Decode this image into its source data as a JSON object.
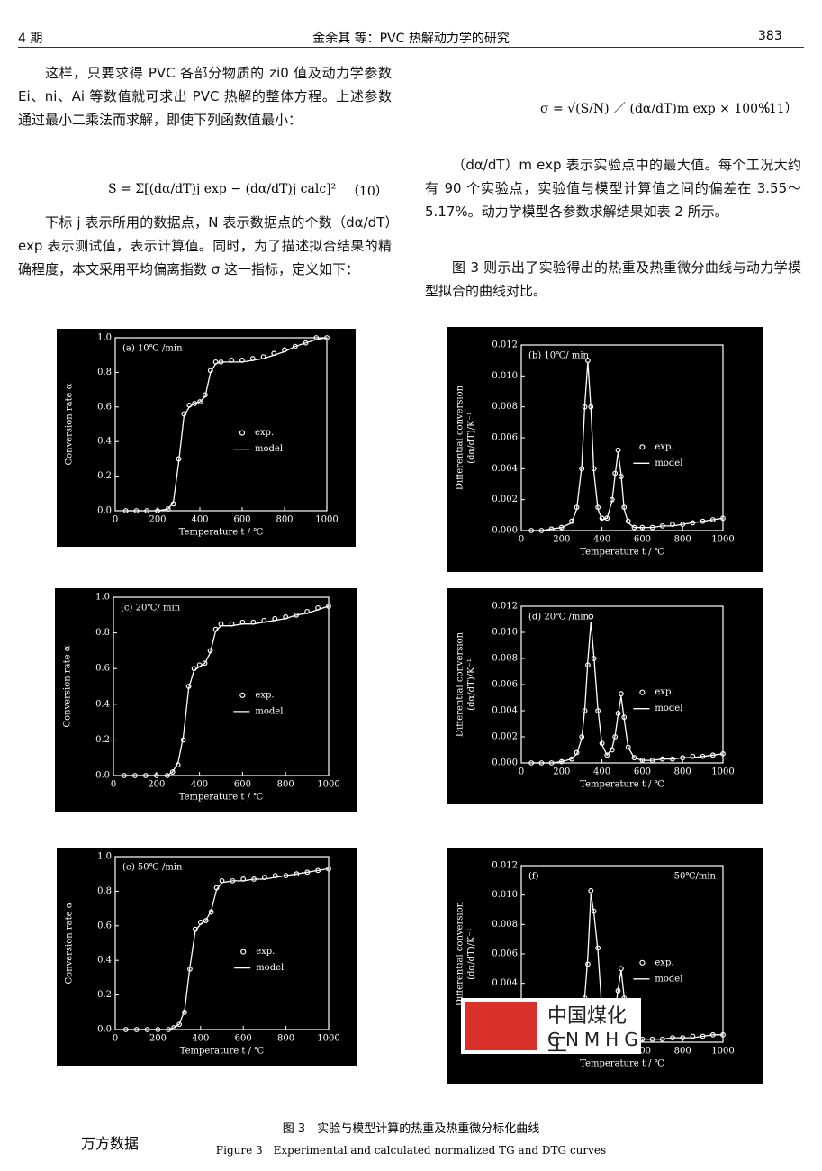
{
  "header": {
    "issue": "4 期",
    "running_title": "金余其 等：PVC 热解动力学的研究",
    "page": "383"
  },
  "text": {
    "left": [
      "这样，只要求得 PVC 各部分物质的 zi0 值及动力学参数 Ei、ni、Ai 等数值就可求出 PVC 热解的整体方程。上述参数通过最小二乘法而求解，即使下列函数值最小：",
      "下标 j 表示所用的数据点，N 表示数据点的个数（dα/dT）exp 表示测试值，表示计算值。同时，为了描述拟合结果的精确程度，本文采用平均偏离指数 σ 这一指标，定义如下："
    ],
    "equation_10": "S = Σ[(dα/dT)j exp − (dα/dT)j calc]²",
    "equation_10_number": "（10）",
    "equation_11": "σ = √(S/N) ／ (dα/dT)m exp × 100%",
    "equation_11_number": "（11）",
    "right": [
      "（dα/dT）m exp 表示实验点中的最大值。每个工况大约有 90 个实验点，实验值与模型计算值之间的偏差在 3.55～5.17%。动力学模型各参数求解结果如表 2 所示。",
      "图 3 则示出了实验得出的热重及热重微分曲线与动力学模型拟合的曲线对比。"
    ]
  },
  "chart_data": [
    {
      "type": "line",
      "label": "(a)  10℃ /min",
      "xlabel": "Temperature   t / ℃",
      "ylabel": [
        "Conversion rate   α"
      ],
      "legend": "center-right",
      "xlim": [
        0,
        1000
      ],
      "xticks": [
        0,
        200,
        400,
        600,
        800,
        1000
      ],
      "ylim": [
        0,
        1
      ],
      "yticks": [
        {
          "value": 0,
          "label": "0.0"
        },
        0.2,
        0.4,
        0.6,
        0.8,
        {
          "value": 1,
          "label": "1.0"
        }
      ],
      "x": [
        50,
        100,
        150,
        200,
        250,
        275,
        300,
        325,
        350,
        375,
        400,
        425,
        450,
        475,
        500,
        550,
        600,
        650,
        700,
        750,
        800,
        850,
        900,
        950,
        1000
      ],
      "series": [
        {
          "name": "exp.",
          "color": "#ffffff",
          "marker": "circle",
          "values": [
            0,
            0,
            0,
            0,
            0.01,
            0.04,
            0.3,
            0.56,
            0.61,
            0.62,
            0.63,
            0.67,
            0.81,
            0.86,
            0.86,
            0.87,
            0.87,
            0.88,
            0.89,
            0.91,
            0.93,
            0.95,
            0.97,
            1.0,
            1.0
          ]
        },
        {
          "name": "model",
          "color": "#ffffff",
          "values": [
            0,
            0,
            0,
            0,
            0.01,
            0.05,
            0.28,
            0.55,
            0.6,
            0.62,
            0.63,
            0.66,
            0.8,
            0.85,
            0.86,
            0.86,
            0.86,
            0.87,
            0.88,
            0.9,
            0.92,
            0.95,
            0.97,
            0.99,
            1.0
          ]
        }
      ]
    },
    {
      "type": "line",
      "label": "(b)   10℃/ min",
      "xlabel": "Temperature   t / ℃",
      "ylabel": [
        "Differential conversion",
        "(dα/dT)/K⁻¹"
      ],
      "legend": "center-right",
      "xlim": [
        0,
        1000
      ],
      "xticks": [
        0,
        200,
        400,
        600,
        800,
        1000
      ],
      "ylim": [
        0,
        0.012
      ],
      "yticks": [
        {
          "value": 0,
          "label": "0.000"
        },
        {
          "value": 0.002,
          "label": "0.002"
        },
        {
          "value": 0.004,
          "label": "0.004"
        },
        {
          "value": 0.006,
          "label": "0.006"
        },
        {
          "value": 0.008,
          "label": "0.008"
        },
        {
          "value": 0.01,
          "label": "0.010"
        },
        {
          "value": 0.012,
          "label": "0.012"
        }
      ],
      "x": [
        50,
        100,
        150,
        200,
        250,
        275,
        300,
        315,
        330,
        345,
        360,
        380,
        400,
        425,
        450,
        465,
        480,
        495,
        510,
        530,
        560,
        600,
        650,
        700,
        750,
        800,
        850,
        900,
        950,
        1000
      ],
      "series": [
        {
          "name": "exp.",
          "color": "#ffffff",
          "marker": "circle",
          "values": [
            0,
            0,
            0.0001,
            0.0002,
            0.0006,
            0.0015,
            0.004,
            0.008,
            0.011,
            0.008,
            0.004,
            0.0015,
            0.0008,
            0.0008,
            0.002,
            0.0037,
            0.0052,
            0.0035,
            0.0015,
            0.0006,
            0.0002,
            0.0002,
            0.0002,
            0.0003,
            0.0004,
            0.0004,
            0.0005,
            0.0006,
            0.0007,
            0.0008
          ]
        },
        {
          "name": "model",
          "color": "#ffffff",
          "values": [
            0,
            0,
            0.0001,
            0.0002,
            0.0005,
            0.0014,
            0.0042,
            0.0082,
            0.0109,
            0.0079,
            0.0038,
            0.0014,
            0.0007,
            0.0008,
            0.0019,
            0.0036,
            0.0051,
            0.0036,
            0.0014,
            0.0005,
            0.0002,
            0.0002,
            0.0002,
            0.0003,
            0.0003,
            0.0004,
            0.0005,
            0.0006,
            0.0007,
            0.0008
          ]
        }
      ]
    },
    {
      "type": "line",
      "label": "(c)   20℃/ min",
      "xlabel": "Temperature   t / ℃",
      "ylabel": [
        "Conversion rate   α"
      ],
      "legend": "center-right",
      "xlim": [
        0,
        1000
      ],
      "xticks": [
        0,
        200,
        400,
        600,
        800,
        1000
      ],
      "ylim": [
        0,
        1
      ],
      "yticks": [
        {
          "value": 0,
          "label": "0.0"
        },
        0.2,
        0.4,
        0.6,
        0.8,
        {
          "value": 1,
          "label": "1.0"
        }
      ],
      "x": [
        50,
        100,
        150,
        200,
        250,
        275,
        300,
        325,
        350,
        375,
        400,
        425,
        450,
        475,
        500,
        550,
        600,
        650,
        700,
        750,
        800,
        850,
        900,
        950,
        1000
      ],
      "series": [
        {
          "name": "exp.",
          "color": "#ffffff",
          "marker": "circle",
          "values": [
            0,
            0,
            0,
            0,
            0,
            0.02,
            0.06,
            0.2,
            0.5,
            0.6,
            0.62,
            0.63,
            0.7,
            0.82,
            0.85,
            0.85,
            0.86,
            0.86,
            0.87,
            0.88,
            0.89,
            0.9,
            0.92,
            0.94,
            0.95
          ]
        },
        {
          "name": "model",
          "color": "#ffffff",
          "values": [
            0,
            0,
            0,
            0,
            0,
            0.02,
            0.07,
            0.22,
            0.49,
            0.59,
            0.61,
            0.63,
            0.69,
            0.81,
            0.84,
            0.84,
            0.85,
            0.85,
            0.86,
            0.87,
            0.88,
            0.9,
            0.91,
            0.93,
            0.95
          ]
        }
      ]
    },
    {
      "type": "line",
      "label": "(d)   20℃ /min",
      "xlabel": "Temperature   t / ℃",
      "ylabel": [
        "Differential conversion",
        "(dα/dT)/K⁻¹"
      ],
      "legend": "center-right",
      "xlim": [
        0,
        1000
      ],
      "xticks": [
        0,
        200,
        400,
        600,
        800,
        1000
      ],
      "ylim": [
        0,
        0.012
      ],
      "yticks": [
        {
          "value": 0,
          "label": "0.000"
        },
        {
          "value": 0.002,
          "label": "0.002"
        },
        {
          "value": 0.004,
          "label": "0.004"
        },
        {
          "value": 0.006,
          "label": "0.006"
        },
        {
          "value": 0.008,
          "label": "0.008"
        },
        {
          "value": 0.01,
          "label": "0.010"
        },
        {
          "value": 0.012,
          "label": "0.012"
        }
      ],
      "x": [
        50,
        100,
        150,
        200,
        250,
        275,
        300,
        315,
        330,
        345,
        360,
        380,
        400,
        425,
        450,
        465,
        480,
        495,
        510,
        530,
        560,
        600,
        650,
        700,
        750,
        800,
        850,
        900,
        950,
        1000
      ],
      "series": [
        {
          "name": "exp.",
          "color": "#ffffff",
          "marker": "circle",
          "values": [
            0,
            0,
            0,
            0.0001,
            0.0003,
            0.0008,
            0.002,
            0.004,
            0.0075,
            0.0112,
            0.008,
            0.004,
            0.0015,
            0.0006,
            0.001,
            0.002,
            0.0038,
            0.0053,
            0.0035,
            0.0012,
            0.0004,
            0.0002,
            0.0002,
            0.0003,
            0.0003,
            0.0004,
            0.0005,
            0.0005,
            0.0006,
            0.0007
          ]
        },
        {
          "name": "model",
          "color": "#ffffff",
          "values": [
            0,
            0,
            0,
            0.0001,
            0.0003,
            0.0007,
            0.0019,
            0.0042,
            0.0078,
            0.0108,
            0.0082,
            0.0041,
            0.0014,
            0.0006,
            0.0011,
            0.0021,
            0.0037,
            0.0051,
            0.0034,
            0.0012,
            0.0004,
            0.0002,
            0.0002,
            0.0003,
            0.0003,
            0.0004,
            0.0004,
            0.0005,
            0.0006,
            0.0007
          ]
        }
      ]
    },
    {
      "type": "line",
      "label": "(e)  50℃ /min",
      "xlabel": "Temperature   t / ℃",
      "ylabel": [
        "Conversion rate   α"
      ],
      "legend": "center-right",
      "xlim": [
        0,
        1000
      ],
      "xticks": [
        0,
        200,
        400,
        600,
        800,
        1000
      ],
      "ylim": [
        0,
        1
      ],
      "yticks": [
        {
          "value": 0,
          "label": "0.0"
        },
        0.2,
        0.4,
        0.6,
        0.8,
        {
          "value": 1,
          "label": "1.0"
        }
      ],
      "x": [
        50,
        100,
        150,
        200,
        250,
        275,
        300,
        325,
        350,
        375,
        400,
        425,
        450,
        475,
        500,
        550,
        600,
        650,
        700,
        750,
        800,
        850,
        900,
        950,
        1000
      ],
      "series": [
        {
          "name": "exp.",
          "color": "#ffffff",
          "marker": "circle",
          "values": [
            0,
            0,
            0,
            0,
            0,
            0.01,
            0.03,
            0.1,
            0.35,
            0.58,
            0.62,
            0.63,
            0.68,
            0.82,
            0.86,
            0.86,
            0.87,
            0.87,
            0.88,
            0.89,
            0.89,
            0.9,
            0.91,
            0.92,
            0.93
          ]
        },
        {
          "name": "model",
          "color": "#ffffff",
          "values": [
            0,
            0,
            0,
            0,
            0,
            0.01,
            0.03,
            0.11,
            0.36,
            0.57,
            0.61,
            0.63,
            0.69,
            0.81,
            0.85,
            0.86,
            0.86,
            0.87,
            0.87,
            0.88,
            0.89,
            0.9,
            0.91,
            0.92,
            0.93
          ]
        }
      ]
    },
    {
      "type": "line",
      "label": "(f)",
      "label2": "50℃/min",
      "xlabel": "Temperature   t / ℃",
      "ylabel": [
        "Differential conversion",
        "(dα/dT)/K⁻¹"
      ],
      "legend": "center-right",
      "xlim": [
        0,
        1000
      ],
      "xticks": [
        0,
        200,
        400,
        600,
        800,
        1000
      ],
      "ylim": [
        0,
        0.012
      ],
      "yticks": [
        {
          "value": 0,
          "label": "0.000"
        },
        {
          "value": 0.002,
          "label": "0.002"
        },
        {
          "value": 0.004,
          "label": "0.004"
        },
        {
          "value": 0.006,
          "label": "0.006"
        },
        {
          "value": 0.008,
          "label": "0.008"
        },
        {
          "value": 0.01,
          "label": "0.010"
        },
        {
          "value": 0.012,
          "label": "0.012"
        }
      ],
      "x": [
        50,
        100,
        150,
        200,
        250,
        275,
        300,
        315,
        330,
        345,
        360,
        380,
        400,
        425,
        450,
        465,
        480,
        495,
        510,
        530,
        560,
        600,
        650,
        700,
        750,
        800,
        850,
        900,
        950,
        1000
      ],
      "series": [
        {
          "name": "exp.",
          "color": "#ffffff",
          "marker": "circle",
          "values": [
            0,
            0,
            0,
            0,
            0.0002,
            0.0005,
            0.0015,
            0.003,
            0.0053,
            0.0103,
            0.0089,
            0.0064,
            0.002,
            0.0008,
            0.0006,
            0.002,
            0.0035,
            0.005,
            0.003,
            0.0012,
            0.0004,
            0.0002,
            0.0002,
            0.0002,
            0.0003,
            0.0003,
            0.0004,
            0.0004,
            0.0005,
            0.0005
          ]
        },
        {
          "name": "model",
          "color": "#ffffff",
          "values": [
            0,
            0,
            0,
            0,
            0.0002,
            0.0005,
            0.0016,
            0.0032,
            0.0058,
            0.0101,
            0.0088,
            0.0062,
            0.0021,
            0.0008,
            0.0007,
            0.0021,
            0.0036,
            0.0049,
            0.0031,
            0.0012,
            0.0004,
            0.0002,
            0.0002,
            0.0002,
            0.0003,
            0.0003,
            0.0003,
            0.0004,
            0.0005,
            0.0005
          ]
        }
      ]
    }
  ],
  "caption": {
    "zh": "图 3　实验与模型计算的热重及热重微分标化曲线",
    "en": "Figure 3　Experimental and calculated normalized TG and DTG curves"
  },
  "source": "万方数据",
  "watermark": {
    "zh": "中国煤化工",
    "en": "CNMHG"
  }
}
